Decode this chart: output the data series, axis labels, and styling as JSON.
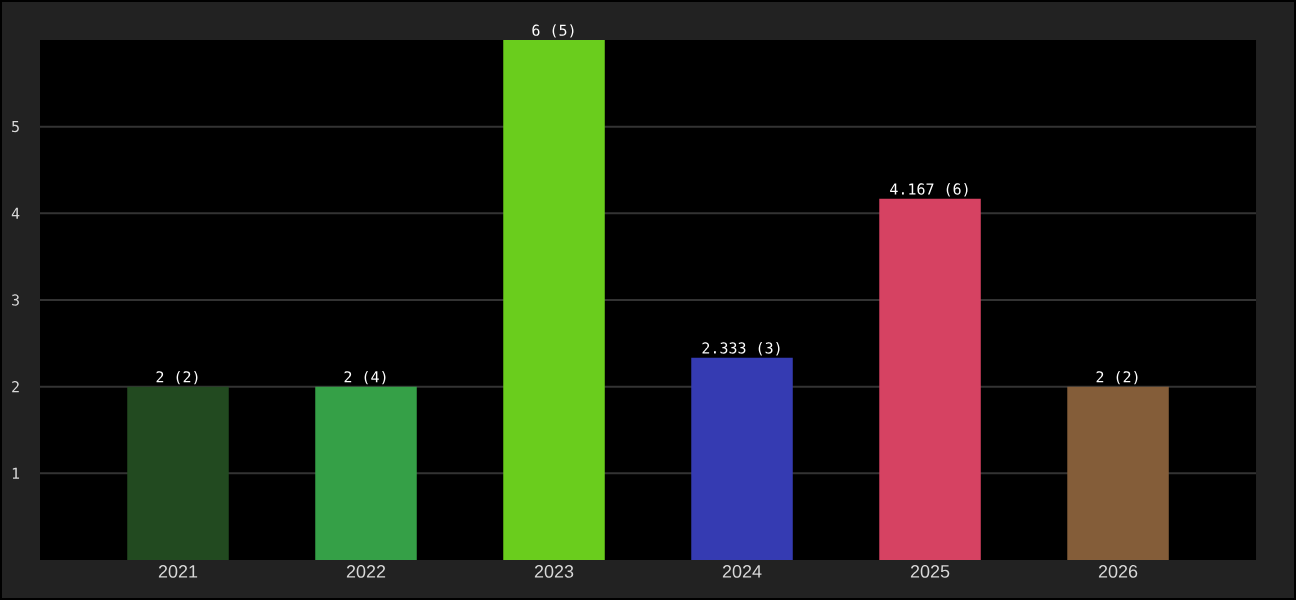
{
  "chart_data": {
    "type": "bar",
    "categories": [
      "2021",
      "2022",
      "2023",
      "2024",
      "2025",
      "2026"
    ],
    "values": [
      2,
      2,
      6,
      2.333,
      4.167,
      2
    ],
    "colors": [
      "#224a20",
      "#35a047",
      "#6acd1d",
      "#353bb2",
      "#d64262",
      "#845d39"
    ],
    "value_labels": [
      "2 (2)",
      "2 (4)",
      "6 (5)",
      "2.333 (3)",
      "4.167 (6)",
      "2 (2)"
    ],
    "ylim": [
      0,
      6
    ],
    "yticks": [
      1,
      2,
      3,
      4,
      5
    ],
    "grid": "y"
  }
}
